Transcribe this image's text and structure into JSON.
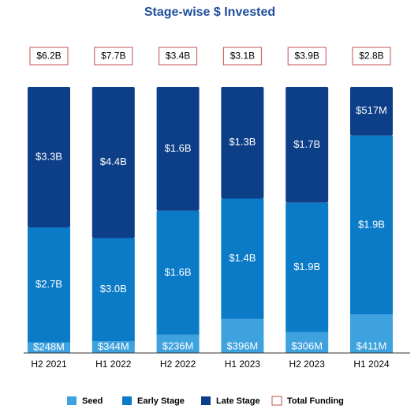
{
  "chart_data": {
    "type": "stacked_bar_100",
    "title": "Stage-wise $ Invested",
    "categories": [
      "H2 2021",
      "H1 2022",
      "H2 2022",
      "H1 2023",
      "H2 2023",
      "H1 2024"
    ],
    "series": [
      {
        "name": "Seed",
        "color": "#3ea2de",
        "values": [
          0.248,
          0.344,
          0.236,
          0.396,
          0.306,
          0.411
        ],
        "value_labels": [
          "$248M",
          "$344M",
          "$236M",
          "$396M",
          "$306M",
          "$411M"
        ]
      },
      {
        "name": "Early Stage",
        "color": "#0b7bc8",
        "values": [
          2.7,
          3.0,
          1.6,
          1.4,
          1.9,
          1.9
        ],
        "value_labels": [
          "$2.7B",
          "$3.0B",
          "$1.6B",
          "$1.4B",
          "$1.9B",
          "$1.9B"
        ]
      },
      {
        "name": "Late Stage",
        "color": "#0d3f88",
        "values": [
          3.3,
          4.4,
          1.6,
          1.3,
          1.7,
          0.517
        ],
        "value_labels": [
          "$3.3B",
          "$4.4B",
          "$1.6B",
          "$1.3B",
          "$1.7B",
          "$517M"
        ]
      }
    ],
    "totals": {
      "name": "Total Funding",
      "color": "#c0504d",
      "values": [
        6.2,
        7.7,
        3.4,
        3.1,
        3.9,
        2.8
      ],
      "value_labels": [
        "$6.2B",
        "$7.7B",
        "$3.4B",
        "$3.1B",
        "$3.9B",
        "$2.8B"
      ]
    }
  }
}
